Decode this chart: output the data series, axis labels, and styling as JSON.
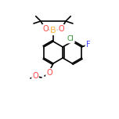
{
  "background": "#ffffff",
  "bond_color": "#000000",
  "atom_colors": {
    "B": "#ffb347",
    "O": "#ff4444",
    "F": "#4444ff",
    "Cl": "#228B22",
    "C": "#000000"
  },
  "line_width": 1.2,
  "font_size": 7
}
